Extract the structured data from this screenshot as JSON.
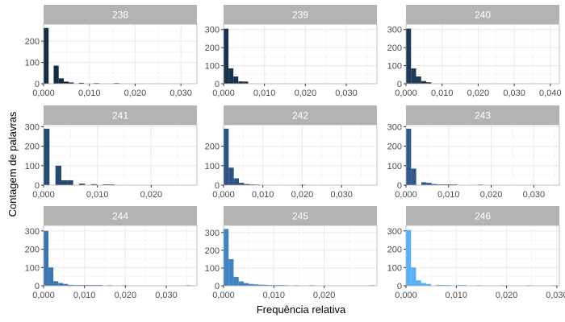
{
  "chart_data": {
    "type": "bar",
    "xlabel": "Frequência relativa",
    "ylabel": "Contagem de palavras",
    "grid": true,
    "facets": [
      {
        "label": "238",
        "color": "#132B43",
        "xlim": [
          0,
          0.0335
        ],
        "ylim": [
          0,
          280
        ],
        "xticks": [
          0,
          0.01,
          0.02,
          0.03
        ],
        "xtick_labels": [
          "0,000",
          "0,010",
          "0,020",
          "0,030"
        ],
        "yticks": [
          0,
          100,
          200
        ],
        "ytick_labels": [
          "0",
          "100",
          "200"
        ],
        "bins": [
          [
            0.0,
            0.0011,
            262
          ],
          [
            0.0022,
            0.0033,
            85
          ],
          [
            0.0033,
            0.0044,
            25
          ],
          [
            0.0044,
            0.0055,
            10
          ],
          [
            0.0055,
            0.0066,
            6
          ],
          [
            0.0077,
            0.0088,
            4
          ],
          [
            0.011,
            0.0121,
            3
          ],
          [
            0.0154,
            0.0165,
            3
          ]
        ]
      },
      {
        "label": "239",
        "color": "#19334F",
        "xlim": [
          0,
          0.0375
        ],
        "ylim": [
          0,
          330
        ],
        "xticks": [
          0,
          0.01,
          0.02,
          0.03
        ],
        "xtick_labels": [
          "0,000",
          "0,010",
          "0,020",
          "0,030"
        ],
        "yticks": [
          0,
          100,
          200,
          300
        ],
        "ytick_labels": [
          "0",
          "100",
          "200",
          "300"
        ],
        "bins": [
          [
            0.0,
            0.0012,
            305
          ],
          [
            0.0012,
            0.0024,
            85
          ],
          [
            0.0024,
            0.0036,
            40
          ],
          [
            0.0036,
            0.0048,
            13
          ],
          [
            0.0048,
            0.006,
            12
          ]
        ]
      },
      {
        "label": "240",
        "color": "#1D3A58",
        "xlim": [
          0,
          0.0425
        ],
        "ylim": [
          0,
          330
        ],
        "xticks": [
          0,
          0.01,
          0.02,
          0.03,
          0.04
        ],
        "xtick_labels": [
          "0,000",
          "0,010",
          "0,020",
          "0,030",
          "0,040"
        ],
        "yticks": [
          0,
          100,
          200,
          300
        ],
        "ytick_labels": [
          "0",
          "100",
          "200",
          "300"
        ],
        "bins": [
          [
            0.0,
            0.0014,
            305
          ],
          [
            0.0014,
            0.0028,
            85
          ],
          [
            0.0028,
            0.0042,
            40
          ],
          [
            0.0042,
            0.0056,
            15
          ],
          [
            0.0056,
            0.007,
            8
          ]
        ]
      },
      {
        "label": "241",
        "color": "#27496D",
        "xlim": [
          0,
          0.0285
        ],
        "ylim": [
          0,
          310
        ],
        "xticks": [
          0,
          0.01,
          0.02
        ],
        "xtick_labels": [
          "0,000",
          "0,010",
          "0,020"
        ],
        "yticks": [
          0,
          100,
          200,
          300
        ],
        "ytick_labels": [
          "0",
          "100",
          "200",
          "300"
        ],
        "bins": [
          [
            0.0,
            0.0011,
            290
          ],
          [
            0.0011,
            0.0022,
            0
          ],
          [
            0.0022,
            0.0033,
            100
          ],
          [
            0.0033,
            0.0044,
            25
          ],
          [
            0.0044,
            0.0055,
            25
          ],
          [
            0.0066,
            0.0077,
            8
          ],
          [
            0.0088,
            0.0099,
            5
          ],
          [
            0.011,
            0.0132,
            4
          ]
        ]
      },
      {
        "label": "242",
        "color": "#2C5381",
        "xlim": [
          0,
          0.039
        ],
        "ylim": [
          0,
          310
        ],
        "xticks": [
          0,
          0.01,
          0.02,
          0.03
        ],
        "xtick_labels": [
          "0,000",
          "0,010",
          "0,020",
          "0,030"
        ],
        "yticks": [
          0,
          100,
          200
        ],
        "ytick_labels": [
          "0",
          "100",
          "200"
        ],
        "bins": [
          [
            0.0,
            0.0013,
            290
          ],
          [
            0.0013,
            0.0026,
            90
          ],
          [
            0.0026,
            0.0039,
            35
          ],
          [
            0.0039,
            0.0052,
            12
          ],
          [
            0.0052,
            0.0065,
            6
          ],
          [
            0.0065,
            0.0078,
            4
          ],
          [
            0.0078,
            0.0091,
            3
          ],
          [
            0.0195,
            0.0208,
            3
          ]
        ]
      },
      {
        "label": "243",
        "color": "#2F5A8B",
        "xlim": [
          0,
          0.036
        ],
        "ylim": [
          0,
          310
        ],
        "xticks": [
          0,
          0.01,
          0.02,
          0.03
        ],
        "xtick_labels": [
          "0,000",
          "0,010",
          "0,020",
          "0,030"
        ],
        "yticks": [
          0,
          100,
          200,
          300
        ],
        "ytick_labels": [
          "0",
          "100",
          "200",
          "300"
        ],
        "bins": [
          [
            0.0,
            0.0012,
            290
          ],
          [
            0.0012,
            0.0024,
            85
          ],
          [
            0.0036,
            0.0048,
            15
          ],
          [
            0.0048,
            0.006,
            12
          ],
          [
            0.006,
            0.0072,
            6
          ],
          [
            0.0072,
            0.0084,
            4
          ],
          [
            0.0084,
            0.0096,
            4
          ],
          [
            0.0096,
            0.0108,
            4
          ],
          [
            0.0108,
            0.012,
            4
          ],
          [
            0.0168,
            0.018,
            3
          ]
        ]
      },
      {
        "label": "244",
        "color": "#3B75AF",
        "xlim": [
          0,
          0.0375
        ],
        "ylim": [
          0,
          330
        ],
        "xticks": [
          0,
          0.01,
          0.02,
          0.03
        ],
        "xtick_labels": [
          "0,000",
          "0,010",
          "0,020",
          "0,030"
        ],
        "yticks": [
          0,
          100,
          200,
          300
        ],
        "ytick_labels": [
          "0",
          "100",
          "200",
          "300"
        ],
        "bins": [
          [
            0.0,
            0.0012,
            300
          ],
          [
            0.0012,
            0.0024,
            100
          ],
          [
            0.0024,
            0.0036,
            25
          ],
          [
            0.0036,
            0.0048,
            15
          ],
          [
            0.0048,
            0.006,
            10
          ],
          [
            0.006,
            0.0072,
            5
          ],
          [
            0.0072,
            0.0084,
            4
          ],
          [
            0.0084,
            0.0096,
            4
          ],
          [
            0.0096,
            0.0108,
            4
          ],
          [
            0.0108,
            0.012,
            4
          ],
          [
            0.012,
            0.0132,
            4
          ],
          [
            0.0132,
            0.0144,
            4
          ],
          [
            0.0156,
            0.0168,
            3
          ],
          [
            0.0192,
            0.0204,
            3
          ],
          [
            0.0348,
            0.036,
            3
          ]
        ]
      },
      {
        "label": "245",
        "color": "#4184C4",
        "xlim": [
          0,
          0.0305
        ],
        "ylim": [
          0,
          340
        ],
        "xticks": [
          0,
          0.01,
          0.02
        ],
        "xtick_labels": [
          "0,000",
          "0,010",
          "0,020"
        ],
        "yticks": [
          0,
          100,
          200,
          300
        ],
        "ytick_labels": [
          "0",
          "100",
          "200",
          "300"
        ],
        "bins": [
          [
            0.0,
            0.001,
            320
          ],
          [
            0.001,
            0.002,
            150
          ],
          [
            0.002,
            0.003,
            50
          ],
          [
            0.003,
            0.004,
            25
          ],
          [
            0.004,
            0.005,
            15
          ],
          [
            0.005,
            0.006,
            10
          ],
          [
            0.006,
            0.007,
            8
          ],
          [
            0.007,
            0.008,
            6
          ],
          [
            0.008,
            0.009,
            5
          ],
          [
            0.009,
            0.01,
            4
          ],
          [
            0.01,
            0.011,
            4
          ],
          [
            0.011,
            0.012,
            4
          ],
          [
            0.012,
            0.013,
            3
          ],
          [
            0.014,
            0.015,
            3
          ],
          [
            0.017,
            0.018,
            3
          ],
          [
            0.029,
            0.03,
            3
          ]
        ]
      },
      {
        "label": "246",
        "color": "#56B1F7",
        "xlim": [
          0,
          0.0305
        ],
        "ylim": [
          0,
          330
        ],
        "xticks": [
          0,
          0.01,
          0.02,
          0.03
        ],
        "xtick_labels": [
          "0,000",
          "0,010",
          "0,020",
          "0,030"
        ],
        "yticks": [
          0,
          100,
          200,
          300
        ],
        "ytick_labels": [
          "0",
          "100",
          "200",
          "300"
        ],
        "bins": [
          [
            0.0,
            0.001,
            305
          ],
          [
            0.001,
            0.002,
            100
          ],
          [
            0.002,
            0.003,
            30
          ],
          [
            0.003,
            0.004,
            15
          ],
          [
            0.004,
            0.005,
            10
          ],
          [
            0.006,
            0.007,
            5
          ],
          [
            0.007,
            0.008,
            4
          ],
          [
            0.008,
            0.009,
            4
          ],
          [
            0.01,
            0.011,
            4
          ],
          [
            0.011,
            0.012,
            4
          ],
          [
            0.014,
            0.015,
            3
          ],
          [
            0.019,
            0.02,
            3
          ],
          [
            0.024,
            0.025,
            3
          ],
          [
            0.029,
            0.03,
            3
          ]
        ]
      }
    ]
  }
}
